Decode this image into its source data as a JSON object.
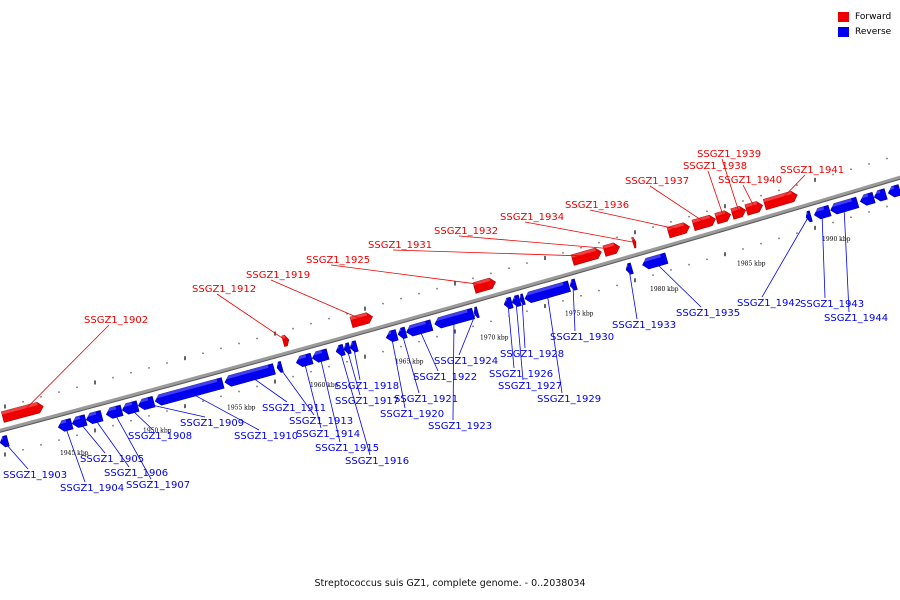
{
  "legend": {
    "items": [
      {
        "label": "Forward",
        "color": "#ee0000"
      },
      {
        "label": "Reverse",
        "color": "#0000ee"
      }
    ]
  },
  "caption": "Streptococcus suis GZ1, complete genome. - 0..2038034",
  "scale_labels": [
    "1945 kbp",
    "1950 kbp",
    "1955 kbp",
    "1960 kbp",
    "1965 kbp",
    "1970 kbp",
    "1975 kbp",
    "1980 kbp",
    "1985 kbp",
    "1990 kbp"
  ],
  "colors": {
    "forward": "#ee0000",
    "reverse": "#0000ee",
    "backbone": "#808080"
  },
  "forward_genes": [
    "SSGZ1_1902",
    "SSGZ1_1912",
    "SSGZ1_1919",
    "SSGZ1_1925",
    "SSGZ1_1931",
    "SSGZ1_1932",
    "SSGZ1_1934",
    "SSGZ1_1936",
    "SSGZ1_1937",
    "SSGZ1_1938",
    "SSGZ1_1939",
    "SSGZ1_1940",
    "SSGZ1_1941"
  ],
  "reverse_genes": [
    "SSGZ1_1903",
    "SSGZ1_1904",
    "SSGZ1_1905",
    "SSGZ1_1906",
    "SSGZ1_1907",
    "SSGZ1_1908",
    "SSGZ1_1909",
    "SSGZ1_1910",
    "SSGZ1_1911",
    "SSGZ1_1913",
    "SSGZ1_1914",
    "SSGZ1_1915",
    "SSGZ1_1916",
    "SSGZ1_1917",
    "SSGZ1_1918",
    "SSGZ1_1920",
    "SSGZ1_1921",
    "SSGZ1_1922",
    "SSGZ1_1923",
    "SSGZ1_1924",
    "SSGZ1_1926",
    "SSGZ1_1927",
    "SSGZ1_1928",
    "SSGZ1_1929",
    "SSGZ1_1930",
    "SSGZ1_1933",
    "SSGZ1_1935",
    "SSGZ1_1942",
    "SSGZ1_1943",
    "SSGZ1_1944"
  ]
}
